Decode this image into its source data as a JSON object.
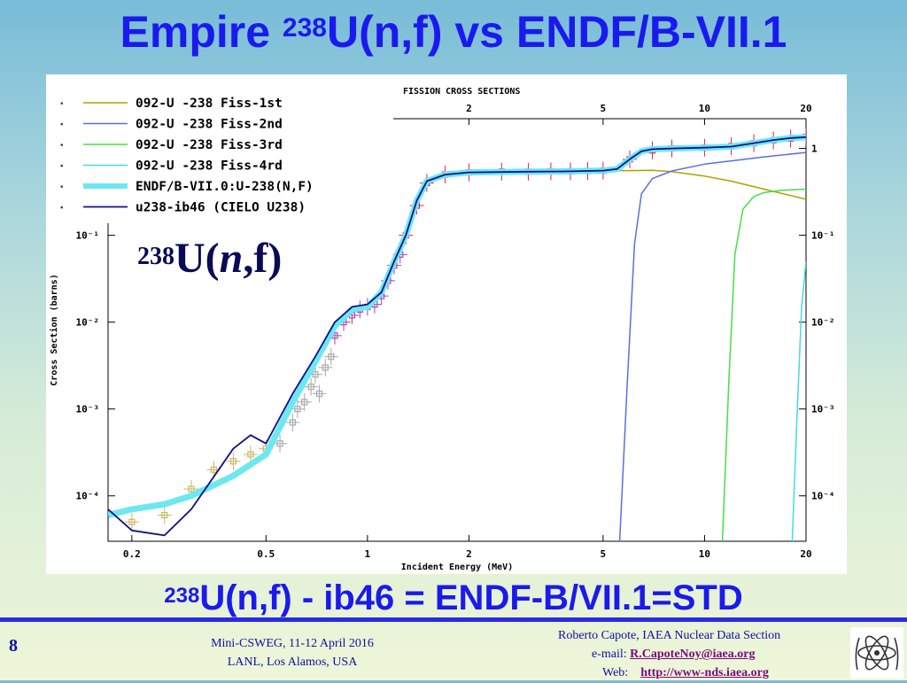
{
  "slide": {
    "title_pre": "Empire ",
    "title_sup": "238",
    "title_post": "U(n,f) vs ENDF/B-VII.1",
    "label_sup": "238",
    "label_u": "U(",
    "label_n": "n",
    "label_f": ",f)",
    "subtitle_sup": "238",
    "subtitle_text": "U(n,f) - ib46 = ENDF-B/VII.1=STD",
    "slide_number": "8",
    "footer_center_line1": "Mini-CSWEG, 11-12 April 2016",
    "footer_center_line2": "LANL, Los Alamos, USA",
    "footer_right_line1": "Roberto Capote, IAEA Nuclear Data Section",
    "footer_email_label": "e-mail:",
    "footer_email": "R.CapoteNoy@iaea.org",
    "footer_web_label": "Web:",
    "footer_web": "http://www-nds.iaea.org",
    "logo_icon": "iaea-atom-logo-icon"
  },
  "colors": {
    "title": "#1a1aee",
    "fiss1": "#b0a000",
    "fiss2": "#5a6ee6",
    "fiss3": "#44e044",
    "fiss4": "#44dcdc",
    "endf": "#6ce8f0",
    "cielo": "#10108c",
    "exp_red": "#e0204a",
    "exp_gray": "#a8a8a8",
    "exp_purple": "#b040b0",
    "exp_olive": "#c8b860"
  },
  "chart_data": {
    "type": "line",
    "title": "FISSION CROSS SECTIONS",
    "xlabel": "Incident Energy (MeV)",
    "ylabel": "Cross Section (barns)",
    "x_scale": "log",
    "y_scale": "log",
    "xlim": [
      0.17,
      20
    ],
    "ylim": [
      3e-05,
      2.2
    ],
    "xticks": [
      0.2,
      0.5,
      1,
      2,
      5,
      10,
      20
    ],
    "xtick_labels": [
      "0.2",
      "0.5",
      "1",
      "2",
      "5",
      "10",
      "20"
    ],
    "top_ticks": [
      2,
      5,
      10,
      20
    ],
    "top_tick_labels": [
      "2",
      "5",
      "10",
      "20"
    ],
    "yticks": [
      0.0001,
      0.001,
      0.01,
      0.1,
      1
    ],
    "ytick_labels_left": [
      "10⁻⁴",
      "10⁻³",
      "10⁻²",
      "10⁻¹"
    ],
    "ytick_labels_right": [
      "10⁻⁴",
      "10⁻³",
      "10⁻²",
      "10⁻¹",
      "1"
    ],
    "legend": [
      {
        "label": "092-U -238    Fiss-1st"
      },
      {
        "label": "092-U -238    Fiss-2nd"
      },
      {
        "label": "092-U -238    Fiss-3rd"
      },
      {
        "label": "092-U -238    Fiss-4rd"
      },
      {
        "label": "ENDF/B-VII.0:U-238(N,F)"
      },
      {
        "label": "u238-ib46 (CIELO U238)"
      }
    ],
    "series": [
      {
        "name": "092-U -238    Fiss-1st",
        "color_key": "fiss1",
        "width": 1.5,
        "x": [
          0.17,
          0.2,
          0.25,
          0.3,
          0.4,
          0.45,
          0.5,
          0.6,
          0.7,
          0.8,
          0.9,
          1.0,
          1.1,
          1.2,
          1.3,
          1.4,
          1.5,
          1.7,
          2.0,
          3.0,
          4.0,
          5.0,
          6.0,
          7.0,
          8.0,
          10,
          12,
          15,
          20
        ],
        "y": [
          7e-05,
          4e-05,
          3.5e-05,
          7e-05,
          0.00035,
          0.0005,
          0.0004,
          0.0015,
          0.004,
          0.01,
          0.015,
          0.016,
          0.022,
          0.05,
          0.1,
          0.25,
          0.42,
          0.5,
          0.53,
          0.54,
          0.545,
          0.555,
          0.555,
          0.56,
          0.54,
          0.48,
          0.42,
          0.34,
          0.26
        ]
      },
      {
        "name": "092-U -238    Fiss-2nd",
        "color_key": "fiss2",
        "width": 1.5,
        "x": [
          5.6,
          5.9,
          6.2,
          6.5,
          7.0,
          8.0,
          10,
          12,
          15,
          20
        ],
        "y": [
          3e-05,
          0.002,
          0.08,
          0.3,
          0.45,
          0.55,
          0.66,
          0.72,
          0.8,
          0.9
        ]
      },
      {
        "name": "092-U -238    Fiss-3rd",
        "color_key": "fiss3",
        "width": 1.5,
        "x": [
          11.3,
          11.8,
          12.3,
          13,
          14,
          15,
          17,
          20
        ],
        "y": [
          3e-05,
          0.002,
          0.06,
          0.2,
          0.28,
          0.31,
          0.33,
          0.34
        ]
      },
      {
        "name": "092-U -238    Fiss-4rd",
        "color_key": "fiss4",
        "width": 1.5,
        "x": [
          18.2,
          18.8,
          19.4,
          20
        ],
        "y": [
          3e-05,
          0.0008,
          0.015,
          0.05
        ]
      },
      {
        "name": "ENDF/B-VII.0:U-238(N,F)",
        "color_key": "endf",
        "width": 7,
        "x": [
          0.17,
          0.2,
          0.25,
          0.3,
          0.4,
          0.5,
          0.6,
          0.7,
          0.8,
          0.9,
          1.0,
          1.1,
          1.2,
          1.3,
          1.4,
          1.5,
          1.7,
          2.0,
          3.0,
          4.0,
          5.0,
          5.5,
          6.0,
          6.5,
          7.0,
          8.0,
          10,
          12,
          14,
          16,
          18,
          20
        ],
        "y": [
          6e-05,
          7e-05,
          8e-05,
          0.0001,
          0.00017,
          0.0003,
          0.0012,
          0.0035,
          0.009,
          0.014,
          0.015,
          0.022,
          0.05,
          0.1,
          0.25,
          0.42,
          0.5,
          0.53,
          0.54,
          0.545,
          0.555,
          0.58,
          0.75,
          0.93,
          0.98,
          1.0,
          1.02,
          1.05,
          1.15,
          1.25,
          1.32,
          1.35
        ]
      },
      {
        "name": "u238-ib46 (CIELO U238)",
        "color_key": "cielo",
        "width": 1.8,
        "x": [
          0.17,
          0.2,
          0.25,
          0.3,
          0.4,
          0.45,
          0.5,
          0.6,
          0.7,
          0.8,
          0.9,
          1.0,
          1.1,
          1.2,
          1.3,
          1.4,
          1.5,
          1.7,
          2.0,
          3.0,
          4.0,
          5.0,
          5.5,
          6.0,
          6.5,
          7.0,
          8.0,
          10,
          12,
          14,
          16,
          18,
          20
        ],
        "y": [
          7e-05,
          4e-05,
          3.5e-05,
          7e-05,
          0.00035,
          0.0005,
          0.0004,
          0.0015,
          0.004,
          0.01,
          0.015,
          0.016,
          0.022,
          0.05,
          0.1,
          0.25,
          0.42,
          0.5,
          0.53,
          0.54,
          0.545,
          0.555,
          0.58,
          0.75,
          0.93,
          0.98,
          1.0,
          1.02,
          1.05,
          1.15,
          1.25,
          1.32,
          1.35
        ]
      }
    ],
    "experimental": {
      "description_visible": "experimental data points with error bars",
      "clusters": [
        {
          "color_key": "exp_olive",
          "x": [
            0.2,
            0.25,
            0.3,
            0.35,
            0.4,
            0.45,
            0.5
          ],
          "y": [
            5e-05,
            6e-05,
            0.00012,
            0.0002,
            0.00025,
            0.0003,
            0.00035
          ]
        },
        {
          "color_key": "exp_gray",
          "x": [
            0.55,
            0.6,
            0.62,
            0.65,
            0.68,
            0.7,
            0.72,
            0.75,
            0.78
          ],
          "y": [
            0.0004,
            0.0007,
            0.001,
            0.0012,
            0.0018,
            0.0025,
            0.0015,
            0.003,
            0.004
          ]
        },
        {
          "color_key": "exp_purple",
          "x": [
            0.8,
            0.85,
            0.9,
            0.95,
            1.0,
            1.05,
            1.1,
            1.15,
            1.2,
            1.25
          ],
          "y": [
            0.007,
            0.01,
            0.012,
            0.014,
            0.015,
            0.016,
            0.02,
            0.03,
            0.045,
            0.06
          ]
        },
        {
          "color_key": "exp_red",
          "x": [
            1.3,
            1.4,
            1.5,
            1.7,
            2.0,
            2.5,
            3.0,
            3.5,
            4.0,
            4.5,
            5.0,
            6.0,
            7.0,
            8.0,
            10,
            12,
            14,
            16,
            18,
            20
          ],
          "y": [
            0.1,
            0.22,
            0.4,
            0.5,
            0.53,
            0.54,
            0.54,
            0.545,
            0.545,
            0.55,
            0.555,
            0.75,
            0.95,
            1.0,
            1.02,
            1.06,
            1.15,
            1.24,
            1.3,
            1.36
          ]
        }
      ]
    }
  }
}
